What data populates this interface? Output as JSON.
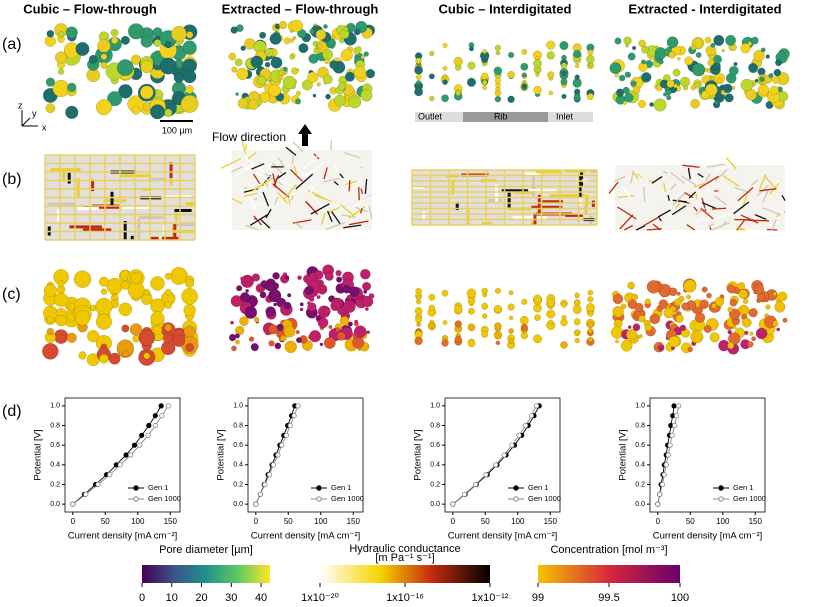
{
  "figure": {
    "columns": [
      "Cubic – Flow-through",
      "Extracted – Flow-through",
      "Cubic – Interdigitated",
      "Extracted - Interdigitated"
    ],
    "rows": [
      "(a)",
      "(b)",
      "(c)",
      "(d)"
    ],
    "axes": [
      "z",
      "y",
      "x"
    ],
    "scale_bar": "100 µm",
    "flow_label": "Flow direction",
    "plate": [
      "Outlet",
      "Rib",
      "Inlet"
    ]
  },
  "colorbars": [
    {
      "label": "Pore diameter [µm]",
      "lim": [
        0,
        43
      ],
      "ticks": [
        0,
        10,
        20,
        30,
        40
      ]
    },
    {
      "label": "Hydraulic conductance",
      "label2": "[m Pa⁻¹ s⁻¹]",
      "log": true,
      "lim": [
        1e-20,
        1e-12
      ],
      "ticks": [
        {
          "value": 1e-20,
          "label": "1x10⁻²⁰"
        },
        {
          "value": 1e-16,
          "label": "1x10⁻¹⁶"
        },
        {
          "value": 1e-12,
          "label": "1x10⁻¹²"
        }
      ]
    },
    {
      "label": "Concentration [mol m⁻³]",
      "lim": [
        99,
        100
      ],
      "ticks": [
        99,
        99.5,
        100
      ]
    }
  ],
  "chart_data": [
    {
      "type": "line",
      "xlabel": "Current density [mA cm⁻²]",
      "ylabel": "Potential [V]",
      "xlim": [
        -12,
        165
      ],
      "ylim": [
        -0.08,
        1.08
      ],
      "xticks": [
        0,
        50,
        100,
        150
      ],
      "yticks": [
        {
          "value": 0,
          "label": "0.0"
        },
        {
          "value": 0.2,
          "label": "0.2"
        },
        {
          "value": 0.4,
          "label": "0.4"
        },
        {
          "value": 0.6,
          "label": "0.6"
        },
        {
          "value": 0.8,
          "label": "0.8"
        },
        {
          "value": 1,
          "label": "1.0"
        }
      ],
      "legend": "lower right",
      "series": [
        {
          "name": "Gen 1",
          "color": "#000000",
          "marker": "filled",
          "x": [
            0,
            18,
            35,
            52,
            67,
            82,
            95,
            106,
            117,
            127,
            136
          ],
          "values": [
            0,
            0.1,
            0.2,
            0.3,
            0.4,
            0.5,
            0.6,
            0.7,
            0.8,
            0.9,
            1
          ]
        },
        {
          "name": "Gen 1000",
          "color": "#888888",
          "marker": "open",
          "x": [
            0,
            20,
            39,
            57,
            73,
            89,
            103,
            116,
            127,
            137,
            147
          ],
          "values": [
            0,
            0.1,
            0.2,
            0.3,
            0.4,
            0.5,
            0.6,
            0.7,
            0.8,
            0.9,
            1
          ]
        }
      ]
    },
    {
      "type": "line",
      "xlabel": "Current density [mA cm⁻²]",
      "ylabel": "Potential [V]",
      "xlim": [
        -12,
        165
      ],
      "ylim": [
        -0.08,
        1.08
      ],
      "xticks": [
        0,
        50,
        100,
        150
      ],
      "yticks": [
        {
          "value": 0,
          "label": "0.0"
        },
        {
          "value": 0.2,
          "label": "0.2"
        },
        {
          "value": 0.4,
          "label": "0.4"
        },
        {
          "value": 0.6,
          "label": "0.6"
        },
        {
          "value": 0.8,
          "label": "0.8"
        },
        {
          "value": 1,
          "label": "1.0"
        }
      ],
      "legend": "lower right",
      "series": [
        {
          "name": "Gen 1",
          "color": "#000000",
          "marker": "filled",
          "x": [
            0,
            7,
            13,
            19,
            25,
            31,
            37,
            43,
            49,
            55,
            60
          ],
          "values": [
            0,
            0.1,
            0.2,
            0.3,
            0.4,
            0.5,
            0.6,
            0.7,
            0.8,
            0.9,
            1
          ]
        },
        {
          "name": "Gen 1000",
          "color": "#888888",
          "marker": "open",
          "x": [
            0,
            7,
            14,
            21,
            27,
            34,
            40,
            47,
            53,
            59,
            65
          ],
          "values": [
            0,
            0.1,
            0.2,
            0.3,
            0.4,
            0.5,
            0.6,
            0.7,
            0.8,
            0.9,
            1
          ]
        }
      ]
    },
    {
      "type": "line",
      "xlabel": "Current density [mA cm⁻²]",
      "ylabel": "Potential [V]",
      "xlim": [
        -12,
        165
      ],
      "ylim": [
        -0.08,
        1.08
      ],
      "xticks": [
        0,
        50,
        100,
        150
      ],
      "yticks": [
        {
          "value": 0,
          "label": "0.0"
        },
        {
          "value": 0.2,
          "label": "0.2"
        },
        {
          "value": 0.4,
          "label": "0.4"
        },
        {
          "value": 0.6,
          "label": "0.6"
        },
        {
          "value": 0.8,
          "label": "0.8"
        },
        {
          "value": 1,
          "label": "1.0"
        }
      ],
      "legend": "lower right",
      "series": [
        {
          "name": "Gen 1",
          "color": "#000000",
          "marker": "filled",
          "x": [
            0,
            19,
            36,
            53,
            68,
            82,
            95,
            106,
            116,
            125,
            133
          ],
          "values": [
            0,
            0.1,
            0.2,
            0.3,
            0.4,
            0.5,
            0.6,
            0.7,
            0.8,
            0.9,
            1
          ]
        },
        {
          "name": "Gen 1000",
          "color": "#888888",
          "marker": "open",
          "x": [
            0,
            18,
            35,
            51,
            66,
            79,
            91,
            102,
            112,
            121,
            129
          ],
          "values": [
            0,
            0.1,
            0.2,
            0.3,
            0.4,
            0.5,
            0.6,
            0.7,
            0.8,
            0.9,
            1
          ]
        }
      ]
    },
    {
      "type": "line",
      "xlabel": "Current density [mA cm⁻²]",
      "ylabel": "Potential [V]",
      "xlim": [
        -12,
        165
      ],
      "ylim": [
        -0.08,
        1.08
      ],
      "xticks": [
        0,
        50,
        100,
        150
      ],
      "yticks": [
        {
          "value": 0,
          "label": "0.0"
        },
        {
          "value": 0.2,
          "label": "0.2"
        },
        {
          "value": 0.4,
          "label": "0.4"
        },
        {
          "value": 0.6,
          "label": "0.6"
        },
        {
          "value": 0.8,
          "label": "0.8"
        },
        {
          "value": 1,
          "label": "1.0"
        }
      ],
      "legend": "lower right",
      "series": [
        {
          "name": "Gen 1",
          "color": "#000000",
          "marker": "filled",
          "x": [
            0,
            3,
            5,
            8,
            10,
            13,
            15,
            18,
            20,
            23,
            25
          ],
          "values": [
            0,
            0.1,
            0.2,
            0.3,
            0.4,
            0.5,
            0.6,
            0.7,
            0.8,
            0.9,
            1
          ]
        },
        {
          "name": "Gen 1000",
          "color": "#888888",
          "marker": "open",
          "x": [
            0,
            3,
            7,
            10,
            13,
            16,
            19,
            22,
            26,
            29,
            32
          ],
          "values": [
            0,
            0.1,
            0.2,
            0.3,
            0.4,
            0.5,
            0.6,
            0.7,
            0.8,
            0.9,
            1
          ]
        }
      ]
    }
  ]
}
